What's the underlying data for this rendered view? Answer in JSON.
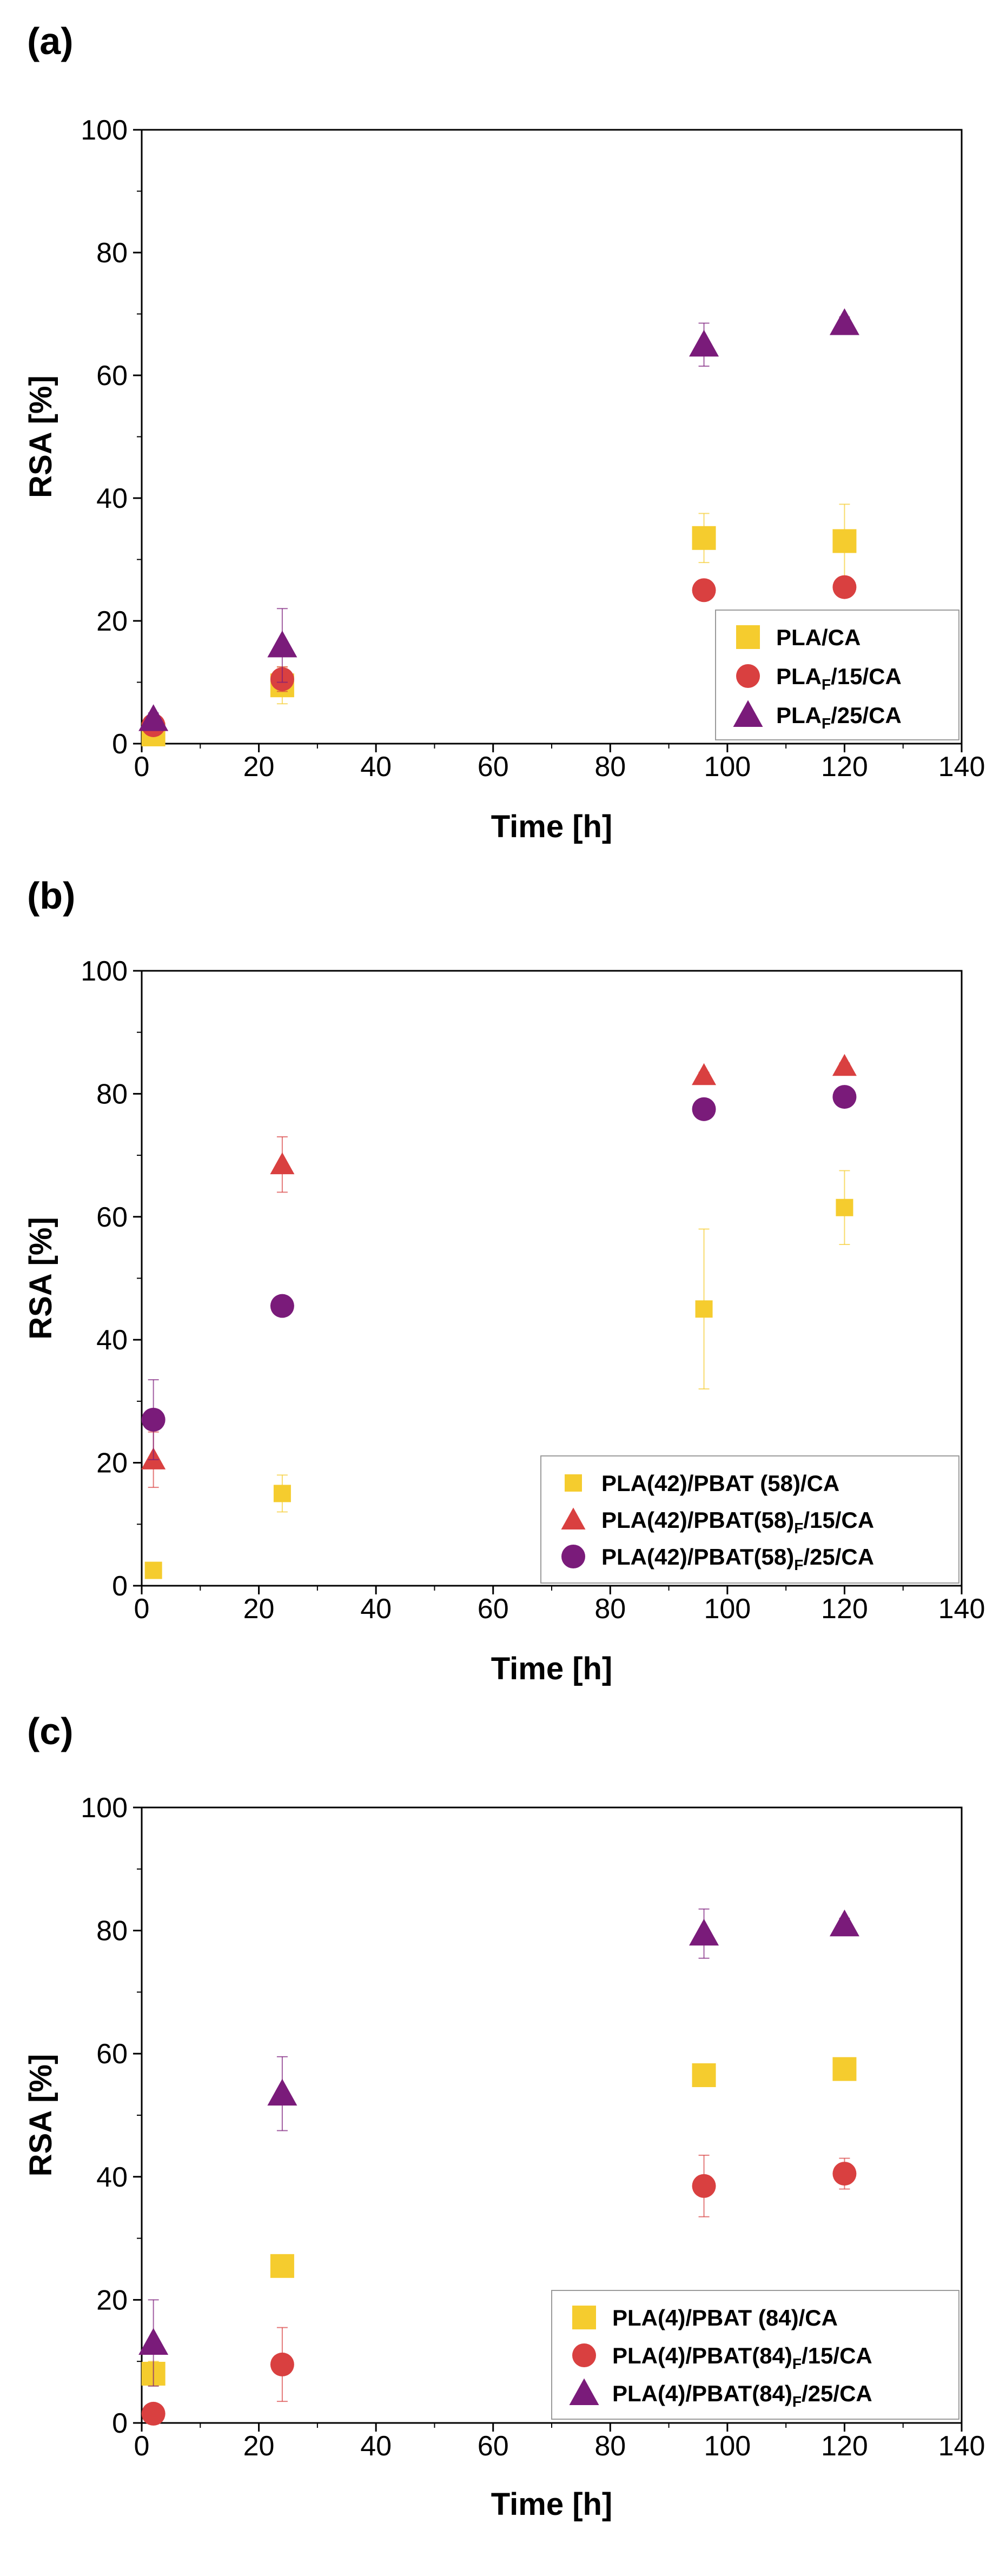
{
  "chart_data": [
    {
      "type": "scatter",
      "panel_label": "(a)",
      "xlabel": "Time [h]",
      "ylabel": "RSA [%]",
      "xlim": [
        0,
        140
      ],
      "ylim": [
        0,
        100
      ],
      "xticks": [
        "0",
        "20",
        "40",
        "60",
        "80",
        "100",
        "120",
        "140"
      ],
      "yticks": [
        "0",
        "20",
        "40",
        "60",
        "80",
        "100"
      ],
      "legend_position": "bottom-right",
      "series": [
        {
          "name": "PLA/CA",
          "marker": "square",
          "color": "#F5CC2E",
          "legend_label": [
            "PLA/CA"
          ],
          "x": [
            2,
            24,
            96,
            120
          ],
          "y": [
            1.5,
            9.5,
            33.5,
            33
          ],
          "err": [
            1,
            3,
            4,
            6
          ]
        },
        {
          "name": "PLA_F/15/CA",
          "marker": "circle",
          "color": "#D94040",
          "legend_label": [
            "PLA",
            "F",
            "/15/CA"
          ],
          "x": [
            2,
            24,
            96,
            120
          ],
          "y": [
            3,
            10.5,
            25,
            25.5
          ],
          "err": [
            1,
            2,
            1,
            1
          ]
        },
        {
          "name": "PLA_F/25/CA",
          "marker": "triangle",
          "color": "#7A1B7A",
          "legend_label": [
            "PLA",
            "F",
            "/25/CA"
          ],
          "x": [
            2,
            24,
            96,
            120
          ],
          "y": [
            4,
            16,
            65,
            68.5
          ],
          "err": [
            1,
            6,
            3.5,
            1
          ]
        }
      ]
    },
    {
      "type": "scatter",
      "panel_label": "(b)",
      "xlabel": "Time [h]",
      "ylabel": "RSA [%]",
      "xlim": [
        0,
        140
      ],
      "ylim": [
        0,
        100
      ],
      "xticks": [
        "0",
        "20",
        "40",
        "60",
        "80",
        "100",
        "120",
        "140"
      ],
      "yticks": [
        "0",
        "20",
        "40",
        "60",
        "80",
        "100"
      ],
      "legend_position": "bottom-right",
      "series": [
        {
          "name": "PLA(42)/PBAT (58)/CA",
          "marker": "square-small",
          "color": "#F5CC2E",
          "legend_label": [
            "PLA(42)/PBAT (58)/CA"
          ],
          "x": [
            2,
            24,
            96,
            120
          ],
          "y": [
            2.5,
            15,
            45,
            61.5
          ],
          "err": [
            0.5,
            3,
            13,
            6
          ]
        },
        {
          "name": "PLA(42)/PBAT(58)_F/15/CA",
          "marker": "triangle-small",
          "color": "#D94040",
          "legend_label": [
            "PLA(42)/PBAT(58)",
            "F",
            "/15/CA"
          ],
          "x": [
            2,
            24,
            96,
            120
          ],
          "y": [
            20.5,
            68.5,
            83,
            84.5
          ],
          "err": [
            4.5,
            4.5,
            0.5,
            0.5
          ]
        },
        {
          "name": "PLA(42)/PBAT(58)_F/25/CA",
          "marker": "circle",
          "color": "#7A1B7A",
          "legend_label": [
            "PLA(42)/PBAT(58)",
            "F",
            "/25/CA"
          ],
          "x": [
            2,
            24,
            96,
            120
          ],
          "y": [
            27,
            45.5,
            77.5,
            79.5
          ],
          "err": [
            6.5,
            0.5,
            0.5,
            0.5
          ]
        }
      ]
    },
    {
      "type": "scatter",
      "panel_label": "(c)",
      "xlabel": "Time [h]",
      "ylabel": "RSA [%]",
      "xlim": [
        0,
        140
      ],
      "ylim": [
        0,
        100
      ],
      "xticks": [
        "0",
        "20",
        "40",
        "60",
        "80",
        "100",
        "120",
        "140"
      ],
      "yticks": [
        "0",
        "20",
        "40",
        "60",
        "80",
        "100"
      ],
      "legend_position": "bottom-right",
      "series": [
        {
          "name": "PLA(4)/PBAT (84)/CA",
          "marker": "square",
          "color": "#F5CC2E",
          "legend_label": [
            "PLA(4)/PBAT (84)/CA"
          ],
          "x": [
            2,
            24,
            96,
            120
          ],
          "y": [
            8,
            25.5,
            56.5,
            57.5
          ],
          "err": [
            2,
            1,
            1,
            1
          ]
        },
        {
          "name": "PLA(4)/PBAT(84)_F/15/CA",
          "marker": "circle",
          "color": "#D94040",
          "legend_label": [
            "PLA(4)/PBAT(84)",
            "F",
            "/15/CA"
          ],
          "x": [
            2,
            24,
            96,
            120
          ],
          "y": [
            1.5,
            9.5,
            38.5,
            40.5
          ],
          "err": [
            0.5,
            6,
            5,
            2.5
          ]
        },
        {
          "name": "PLA(4)/PBAT(84)_F/25/CA",
          "marker": "triangle",
          "color": "#7A1B7A",
          "legend_label": [
            "PLA(4)/PBAT(84)",
            "F",
            "/25/CA"
          ],
          "x": [
            2,
            24,
            96,
            120
          ],
          "y": [
            13,
            53.5,
            79.5,
            81
          ],
          "err": [
            7,
            6,
            4,
            1
          ]
        }
      ]
    }
  ]
}
